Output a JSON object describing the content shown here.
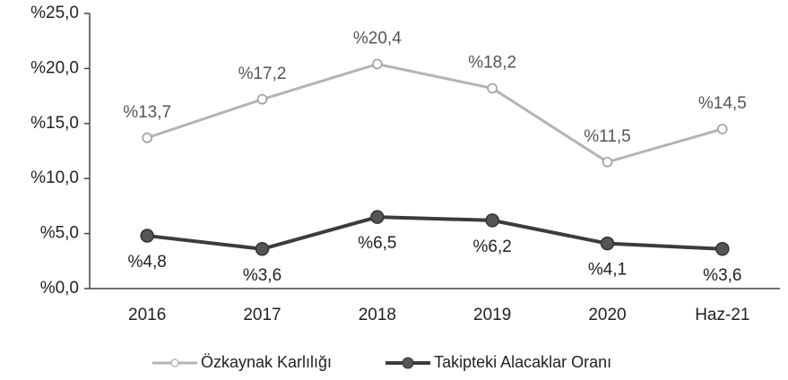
{
  "chart_data": {
    "type": "line",
    "categories": [
      "2016",
      "2017",
      "2018",
      "2019",
      "2020",
      "Haz-21"
    ],
    "series": [
      {
        "name": "Özkaynak Karlılığı",
        "color": "#b4b4b4",
        "values": [
          13.7,
          17.2,
          20.4,
          18.2,
          11.5,
          14.5
        ],
        "value_labels": [
          "%13,7",
          "%17,2",
          "%20,4",
          "%18,2",
          "%11,5",
          "%14,5"
        ]
      },
      {
        "name": "Takipteki Alacaklar Oranı",
        "color": "#3c3c3c",
        "values": [
          4.8,
          3.6,
          6.5,
          6.2,
          4.1,
          3.6
        ],
        "value_labels": [
          "%4,8",
          "%3,6",
          "%6,5",
          "%6,2",
          "%4,1",
          "%3,6"
        ]
      }
    ],
    "ylim": [
      0,
      25
    ],
    "yticks": [
      {
        "value": 0,
        "label": "%0,0"
      },
      {
        "value": 5,
        "label": "%5,0"
      },
      {
        "value": 10,
        "label": "%10,0"
      },
      {
        "value": 15,
        "label": "%15,0"
      },
      {
        "value": 20,
        "label": "%20,0"
      },
      {
        "value": 25,
        "label": "%25,0"
      }
    ],
    "grid": false,
    "legend": "bottom"
  }
}
